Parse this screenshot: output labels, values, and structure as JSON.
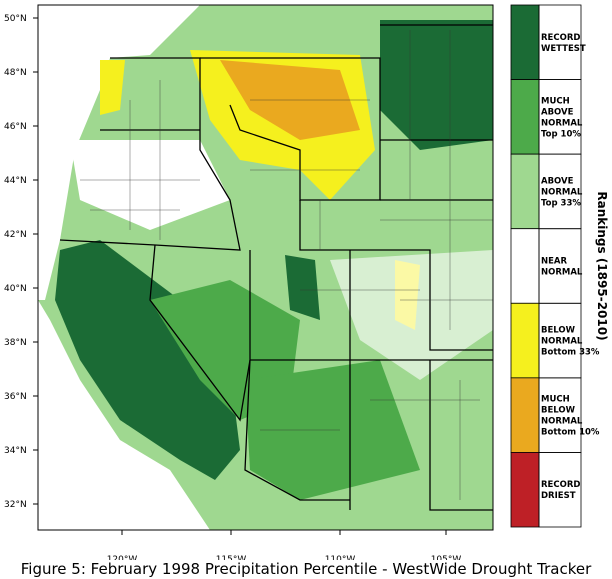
{
  "map": {
    "latitude_labels": [
      "50°N",
      "48°N",
      "46°N",
      "44°N",
      "42°N",
      "40°N",
      "38°N",
      "36°N",
      "34°N",
      "32°N"
    ],
    "longitude_labels": [
      "120°W",
      "115°W",
      "110°W",
      "105°W"
    ],
    "legend": {
      "title": "Rankings (1895-2010)",
      "entries": [
        {
          "lines": [
            "RECORD",
            "WETTEST"
          ],
          "color": "#1b6b35"
        },
        {
          "lines": [
            "MUCH",
            "ABOVE",
            "NORMAL",
            "Top 10%"
          ],
          "color": "#4daa4a"
        },
        {
          "lines": [
            "ABOVE",
            "NORMAL",
            "Top 33%"
          ],
          "color": "#9fd890"
        },
        {
          "lines": [
            "NEAR",
            "NORMAL"
          ],
          "color": "#ffffff"
        },
        {
          "lines": [
            "BELOW",
            "NORMAL",
            "Bottom 33%"
          ],
          "color": "#f5f01e"
        },
        {
          "lines": [
            "MUCH",
            "BELOW",
            "NORMAL",
            "Bottom 10%"
          ],
          "color": "#eaa91f"
        },
        {
          "lines": [
            "RECORD",
            "DRIEST"
          ],
          "color": "#be2026"
        }
      ]
    },
    "caption": "Figure 5: February 1998 Precipitation Percentile - WestWide Drought Tracker"
  }
}
